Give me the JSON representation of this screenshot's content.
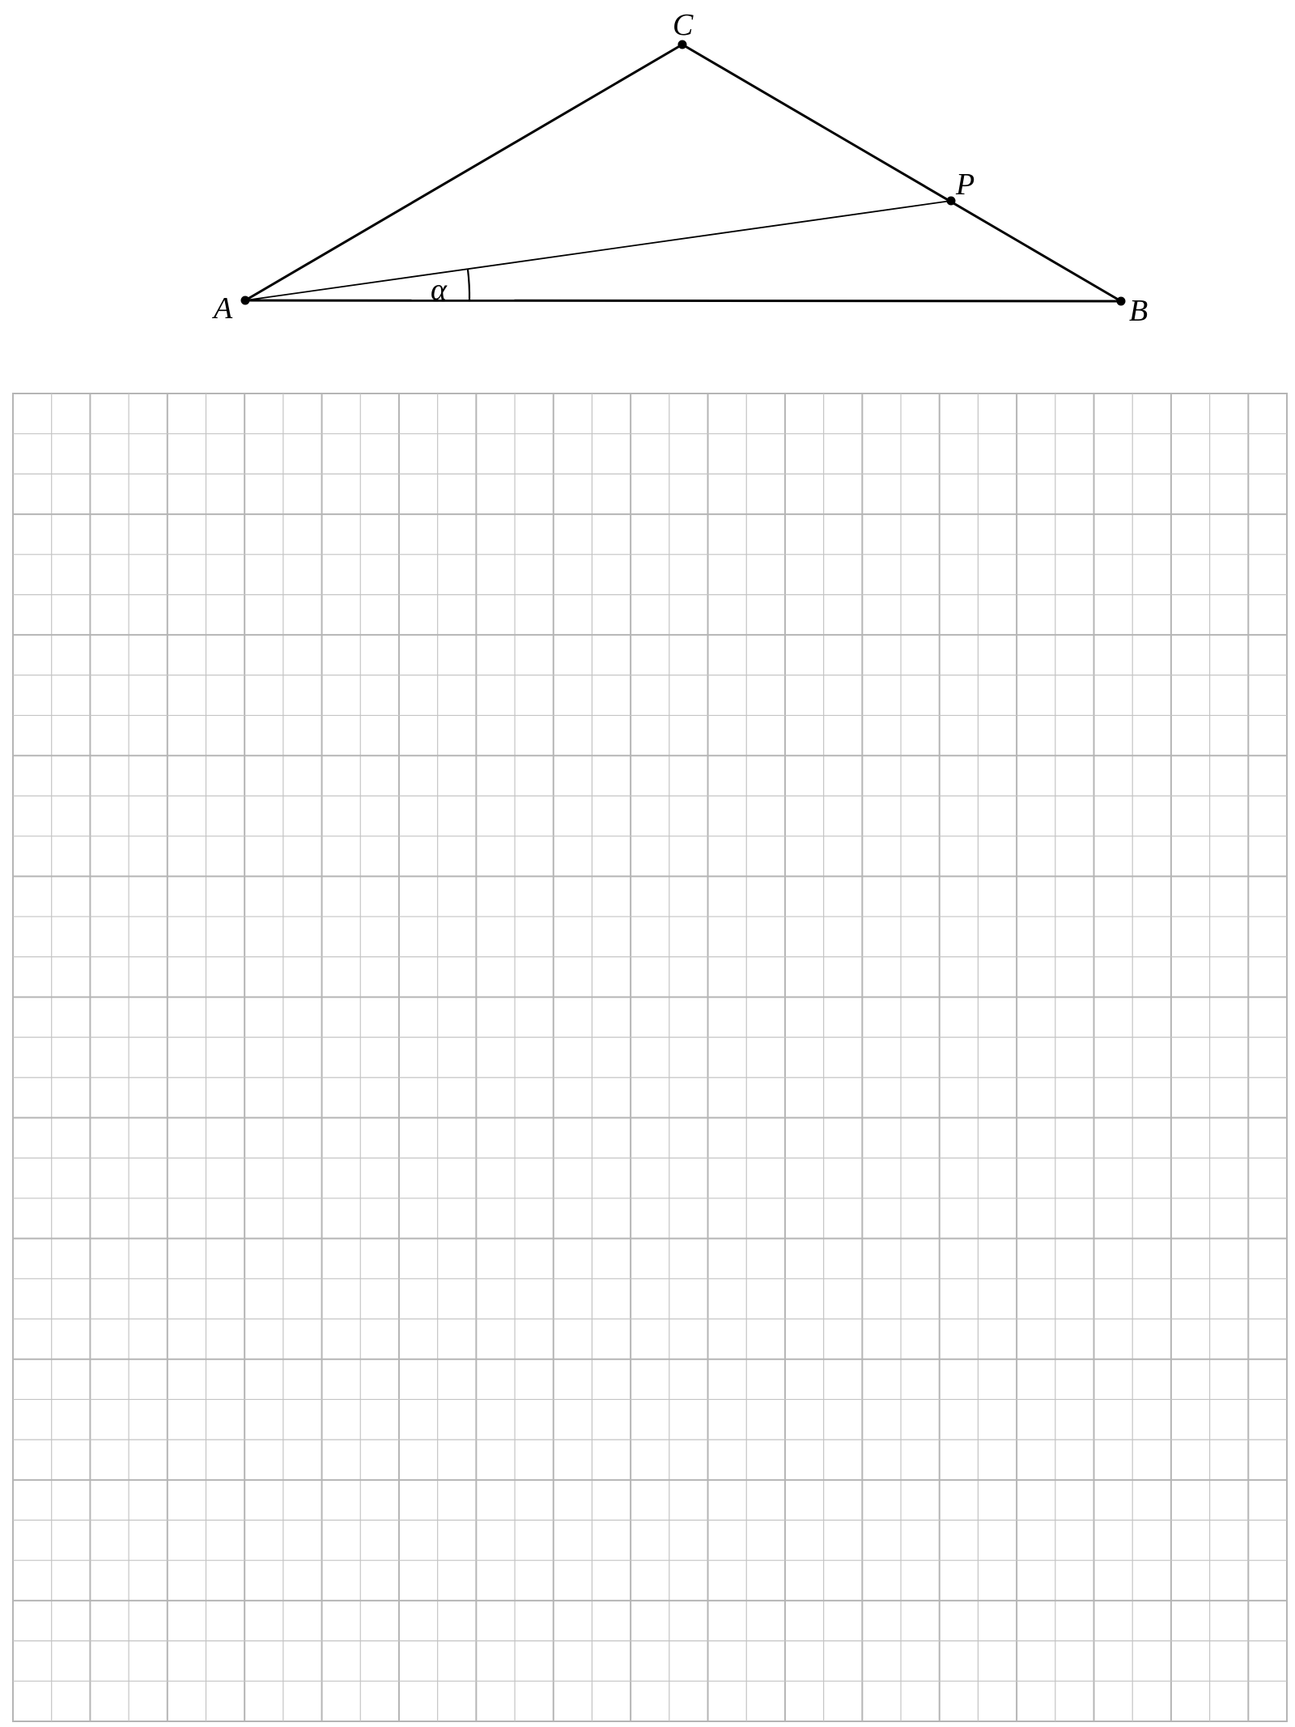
{
  "diagram": {
    "points": [
      {
        "id": "A",
        "label": "A"
      },
      {
        "id": "B",
        "label": "B"
      },
      {
        "id": "C",
        "label": "C"
      },
      {
        "id": "P",
        "label": "P"
      }
    ],
    "segments": [
      {
        "from": "A",
        "to": "B"
      },
      {
        "from": "A",
        "to": "C"
      },
      {
        "from": "C",
        "to": "B"
      },
      {
        "from": "A",
        "to": "P"
      }
    ],
    "angle": {
      "vertex": "A",
      "between": [
        "B",
        "P"
      ],
      "label": "α"
    }
  },
  "grid": {
    "columns": 33,
    "rows": 33,
    "line_color": "#c4c4c4",
    "major_line_color": "#b5b5b5"
  },
  "colors": {
    "stroke": "#000000",
    "background": "#ffffff"
  }
}
